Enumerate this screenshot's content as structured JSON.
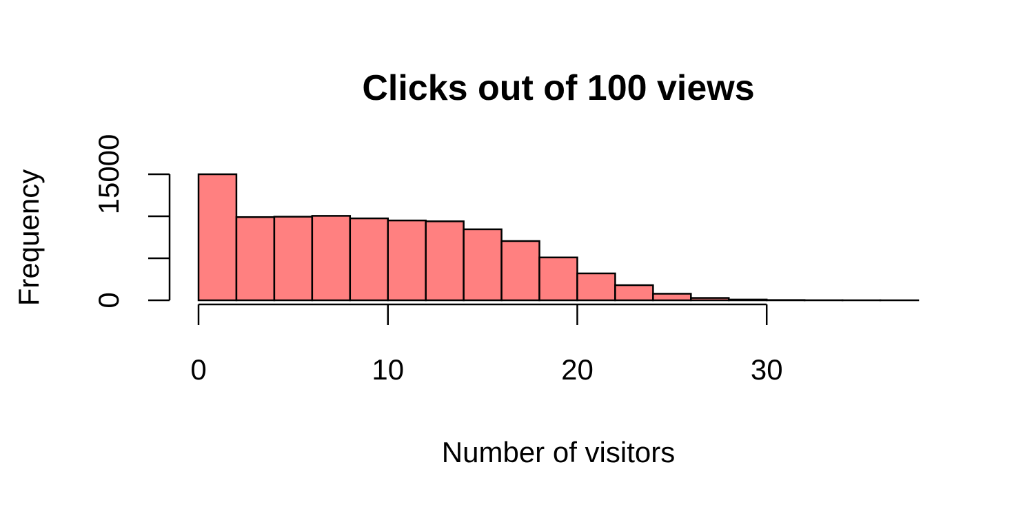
{
  "chart_data": {
    "type": "bar",
    "title": "Clicks out of 100 views",
    "xlabel": "Number of visitors",
    "ylabel": "Frequency",
    "bin_width": 2,
    "bin_starts": [
      0,
      2,
      4,
      6,
      8,
      10,
      12,
      14,
      16,
      18,
      20,
      22,
      24,
      26,
      28,
      30,
      32,
      34,
      36
    ],
    "values": [
      15000,
      9900,
      9950,
      10050,
      9750,
      9500,
      9400,
      8450,
      7050,
      5100,
      3200,
      1800,
      780,
      280,
      90,
      30,
      10,
      5,
      3
    ],
    "xlim": [
      0,
      38
    ],
    "ylim": [
      0,
      15000
    ],
    "x_ticks": [
      0,
      10,
      20,
      30
    ],
    "x_tick_labels": [
      "0",
      "10",
      "20",
      "30"
    ],
    "y_ticks": [
      0,
      5000,
      10000,
      15000
    ],
    "y_tick_labels": [
      "0",
      "",
      "",
      "15000"
    ],
    "bar_color": "#FF8080",
    "bar_border_color": "#000000",
    "grid": false,
    "legend": "none"
  }
}
